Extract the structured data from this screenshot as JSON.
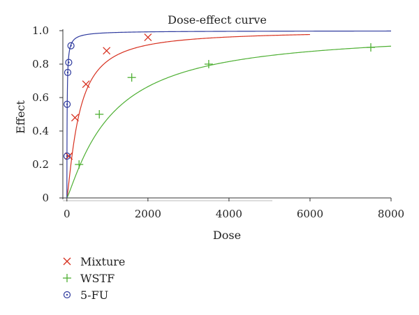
{
  "chart_data": {
    "type": "scatter",
    "title": "Dose-effect curve",
    "xlabel": "Dose",
    "ylabel": "Effect",
    "xlim": [
      -100,
      8000
    ],
    "ylim": [
      0,
      1.0
    ],
    "x_ticks": [
      0,
      2000,
      4000,
      6000,
      8000
    ],
    "x_tick_labels": [
      "0",
      "2000",
      "4000",
      "6000",
      "8000"
    ],
    "y_ticks": [
      0,
      0.2,
      0.4,
      0.6,
      0.8,
      1.0
    ],
    "y_tick_labels": [
      "0",
      "0.2",
      "0.4",
      "0.6",
      "0.8",
      "1.0"
    ],
    "legend_position": "bottom-left",
    "series": [
      {
        "name": "Mixture",
        "marker": "x",
        "color": "#d7301f",
        "dm": 300,
        "m": 1.25,
        "curve_xmax": 6000,
        "points": [
          [
            50,
            0.25
          ],
          [
            200,
            0.48
          ],
          [
            470,
            0.68
          ],
          [
            980,
            0.88
          ],
          [
            2000,
            0.96
          ]
        ]
      },
      {
        "name": "WSTF",
        "marker": "+",
        "color": "#4daf32",
        "dm": 1100,
        "m": 1.15,
        "curve_xmax": 8000,
        "points": [
          [
            300,
            0.2
          ],
          [
            800,
            0.5
          ],
          [
            1600,
            0.72
          ],
          [
            3500,
            0.8
          ],
          [
            7500,
            0.9
          ]
        ]
      },
      {
        "name": "5-FU",
        "marker": "circle-dot",
        "color": "#2e3a9e",
        "dm": 6,
        "m": 0.85,
        "curve_xmax": 8000,
        "points": [
          [
            3,
            0.25
          ],
          [
            5,
            0.56
          ],
          [
            20,
            0.75
          ],
          [
            45,
            0.81
          ],
          [
            100,
            0.91
          ]
        ]
      }
    ]
  }
}
